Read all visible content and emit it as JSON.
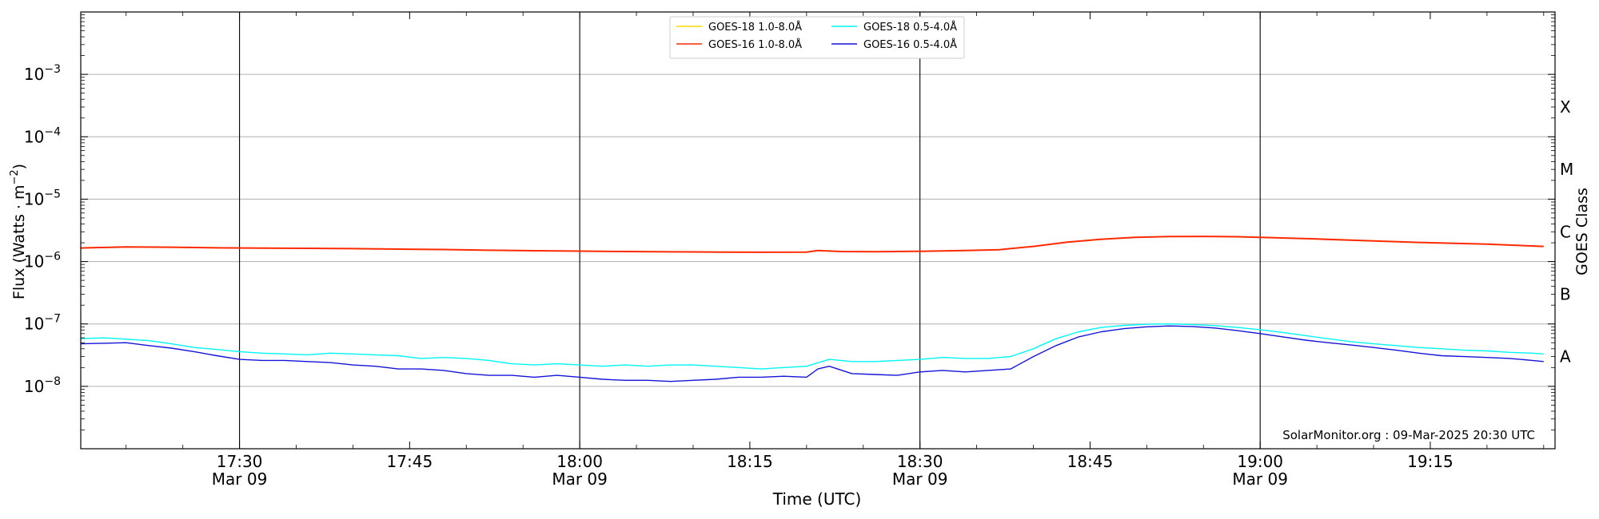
{
  "chart_data": {
    "type": "line",
    "xlabel": "Time (UTC)",
    "ylabel": "Flux (Watts · m",
    "ylabel_sup": "−2",
    "ylabel_close": ")",
    "right_label": "GOES Class",
    "yscale": "log",
    "ylim": [
      1e-09,
      0.01
    ],
    "xlim": [
      "17:16",
      "19:26"
    ],
    "y_ticks": [
      {
        "value": 0.001,
        "base": "10",
        "exp": "−3"
      },
      {
        "value": 0.0001,
        "base": "10",
        "exp": "−4"
      },
      {
        "value": 1e-05,
        "base": "10",
        "exp": "−5"
      },
      {
        "value": 1e-06,
        "base": "10",
        "exp": "−6"
      },
      {
        "value": 1e-07,
        "base": "10",
        "exp": "−7"
      },
      {
        "value": 1e-08,
        "base": "10",
        "exp": "−8"
      }
    ],
    "x_ticks": [
      {
        "time": "17:30",
        "label": "17:30",
        "sub": "Mar 09",
        "major": true
      },
      {
        "time": "17:45",
        "label": "17:45",
        "sub": "",
        "major": false
      },
      {
        "time": "18:00",
        "label": "18:00",
        "sub": "Mar 09",
        "major": true
      },
      {
        "time": "18:15",
        "label": "18:15",
        "sub": "",
        "major": false
      },
      {
        "time": "18:30",
        "label": "18:30",
        "sub": "Mar 09",
        "major": true
      },
      {
        "time": "18:45",
        "label": "18:45",
        "sub": "",
        "major": false
      },
      {
        "time": "19:00",
        "label": "19:00",
        "sub": "Mar 09",
        "major": true
      },
      {
        "time": "19:15",
        "label": "19:15",
        "sub": "",
        "major": false
      }
    ],
    "class_labels": [
      {
        "label": "X",
        "value": 0.0003
      },
      {
        "label": "M",
        "value": 3e-05
      },
      {
        "label": "C",
        "value": 3e-06
      },
      {
        "label": "B",
        "value": 3e-07
      },
      {
        "label": "A",
        "value": 3e-08
      }
    ],
    "legend_position": "top-center",
    "annotation": "SolarMonitor.org : 09-Mar-2025 20:30 UTC",
    "series": [
      {
        "name": "GOES-18 1.0-8.0Å",
        "color": "#FFD700",
        "visible": false,
        "x": [],
        "y": []
      },
      {
        "name": "GOES-16 1.0-8.0Å",
        "color": "#FF2A00",
        "visible": true,
        "x": [
          "17:16",
          "17:20",
          "17:24",
          "17:28",
          "17:32",
          "17:36",
          "17:40",
          "17:44",
          "17:48",
          "17:52",
          "17:56",
          "18:00",
          "18:04",
          "18:08",
          "18:12",
          "18:16",
          "18:20",
          "18:21",
          "18:23",
          "18:26",
          "18:30",
          "18:34",
          "18:37",
          "18:40",
          "18:43",
          "18:46",
          "18:49",
          "18:52",
          "18:55",
          "18:58",
          "19:01",
          "19:05",
          "19:10",
          "19:15",
          "19:20",
          "19:25"
        ],
        "y": [
          1.65e-06,
          1.72e-06,
          1.7e-06,
          1.66e-06,
          1.64e-06,
          1.63e-06,
          1.61e-06,
          1.58e-06,
          1.56e-06,
          1.52e-06,
          1.49e-06,
          1.47e-06,
          1.45e-06,
          1.43e-06,
          1.42e-06,
          1.41e-06,
          1.42e-06,
          1.5e-06,
          1.45e-06,
          1.44e-06,
          1.46e-06,
          1.5e-06,
          1.55e-06,
          1.75e-06,
          2.05e-06,
          2.28e-06,
          2.45e-06,
          2.52e-06,
          2.53e-06,
          2.5e-06,
          2.42e-06,
          2.3e-06,
          2.14e-06,
          2e-06,
          1.9e-06,
          1.75e-06
        ]
      },
      {
        "name": "GOES-18 0.5-4.0Å",
        "color": "#00F5F5",
        "visible": true,
        "x": [
          "17:16",
          "17:18",
          "17:20",
          "17:22",
          "17:24",
          "17:26",
          "17:28",
          "17:30",
          "17:32",
          "17:34",
          "17:36",
          "17:38",
          "17:40",
          "17:42",
          "17:44",
          "17:46",
          "17:48",
          "17:50",
          "17:52",
          "17:54",
          "17:56",
          "17:58",
          "18:00",
          "18:02",
          "18:04",
          "18:06",
          "18:08",
          "18:10",
          "18:12",
          "18:14",
          "18:16",
          "18:18",
          "18:20",
          "18:22",
          "18:24",
          "18:26",
          "18:28",
          "18:30",
          "18:32",
          "18:34",
          "18:36",
          "18:38",
          "18:40",
          "18:42",
          "18:44",
          "18:46",
          "18:48",
          "18:50",
          "18:52",
          "18:54",
          "18:56",
          "18:58",
          "19:00",
          "19:02",
          "19:04",
          "19:06",
          "19:08",
          "19:10",
          "19:12",
          "19:14",
          "19:16",
          "19:18",
          "19:20",
          "19:22",
          "19:24",
          "19:25"
        ],
        "y": [
          5.8e-08,
          6e-08,
          5.7e-08,
          5.4e-08,
          4.8e-08,
          4.2e-08,
          3.9e-08,
          3.6e-08,
          3.4e-08,
          3.3e-08,
          3.2e-08,
          3.4e-08,
          3.3e-08,
          3.2e-08,
          3.1e-08,
          2.8e-08,
          2.9e-08,
          2.8e-08,
          2.6e-08,
          2.3e-08,
          2.2e-08,
          2.3e-08,
          2.2e-08,
          2.1e-08,
          2.2e-08,
          2.1e-08,
          2.2e-08,
          2.2e-08,
          2.1e-08,
          2e-08,
          1.9e-08,
          2e-08,
          2.1e-08,
          2.7e-08,
          2.5e-08,
          2.5e-08,
          2.6e-08,
          2.7e-08,
          2.9e-08,
          2.8e-08,
          2.8e-08,
          3e-08,
          4e-08,
          5.8e-08,
          7.5e-08,
          8.8e-08,
          9.5e-08,
          9.9e-08,
          1e-07,
          9.8e-08,
          9.4e-08,
          8.8e-08,
          8.1e-08,
          7.3e-08,
          6.5e-08,
          5.8e-08,
          5.2e-08,
          4.8e-08,
          4.5e-08,
          4.2e-08,
          4e-08,
          3.8e-08,
          3.7e-08,
          3.5e-08,
          3.4e-08,
          3.3e-08
        ]
      },
      {
        "name": "GOES-16 0.5-4.0Å",
        "color": "#1414D8",
        "visible": true,
        "x": [
          "17:16",
          "17:18",
          "17:20",
          "17:22",
          "17:24",
          "17:26",
          "17:28",
          "17:30",
          "17:32",
          "17:34",
          "17:36",
          "17:38",
          "17:40",
          "17:42",
          "17:44",
          "17:46",
          "17:48",
          "17:50",
          "17:52",
          "17:54",
          "17:56",
          "17:58",
          "18:00",
          "18:02",
          "18:04",
          "18:06",
          "18:08",
          "18:10",
          "18:12",
          "18:14",
          "18:16",
          "18:18",
          "18:20",
          "18:21",
          "18:22",
          "18:24",
          "18:26",
          "18:28",
          "18:30",
          "18:32",
          "18:34",
          "18:36",
          "18:38",
          "18:40",
          "18:42",
          "18:44",
          "18:46",
          "18:48",
          "18:50",
          "18:52",
          "18:54",
          "18:56",
          "18:58",
          "19:00",
          "19:02",
          "19:04",
          "19:06",
          "19:08",
          "19:10",
          "19:12",
          "19:14",
          "19:16",
          "19:18",
          "19:20",
          "19:22",
          "19:24",
          "19:25"
        ],
        "y": [
          4.8e-08,
          4.9e-08,
          5e-08,
          4.5e-08,
          4.1e-08,
          3.6e-08,
          3.1e-08,
          2.7e-08,
          2.6e-08,
          2.6e-08,
          2.5e-08,
          2.4e-08,
          2.2e-08,
          2.1e-08,
          1.9e-08,
          1.9e-08,
          1.8e-08,
          1.6e-08,
          1.5e-08,
          1.5e-08,
          1.4e-08,
          1.5e-08,
          1.4e-08,
          1.3e-08,
          1.25e-08,
          1.25e-08,
          1.2e-08,
          1.25e-08,
          1.3e-08,
          1.4e-08,
          1.4e-08,
          1.45e-08,
          1.4e-08,
          1.9e-08,
          2.1e-08,
          1.6e-08,
          1.55e-08,
          1.5e-08,
          1.7e-08,
          1.8e-08,
          1.7e-08,
          1.8e-08,
          1.9e-08,
          3e-08,
          4.5e-08,
          6.2e-08,
          7.5e-08,
          8.4e-08,
          9e-08,
          9.3e-08,
          9.1e-08,
          8.6e-08,
          7.8e-08,
          7e-08,
          6.2e-08,
          5.5e-08,
          5e-08,
          4.6e-08,
          4.2e-08,
          3.8e-08,
          3.4e-08,
          3.1e-08,
          3e-08,
          2.9e-08,
          2.8e-08,
          2.6e-08,
          2.5e-08
        ]
      }
    ]
  }
}
